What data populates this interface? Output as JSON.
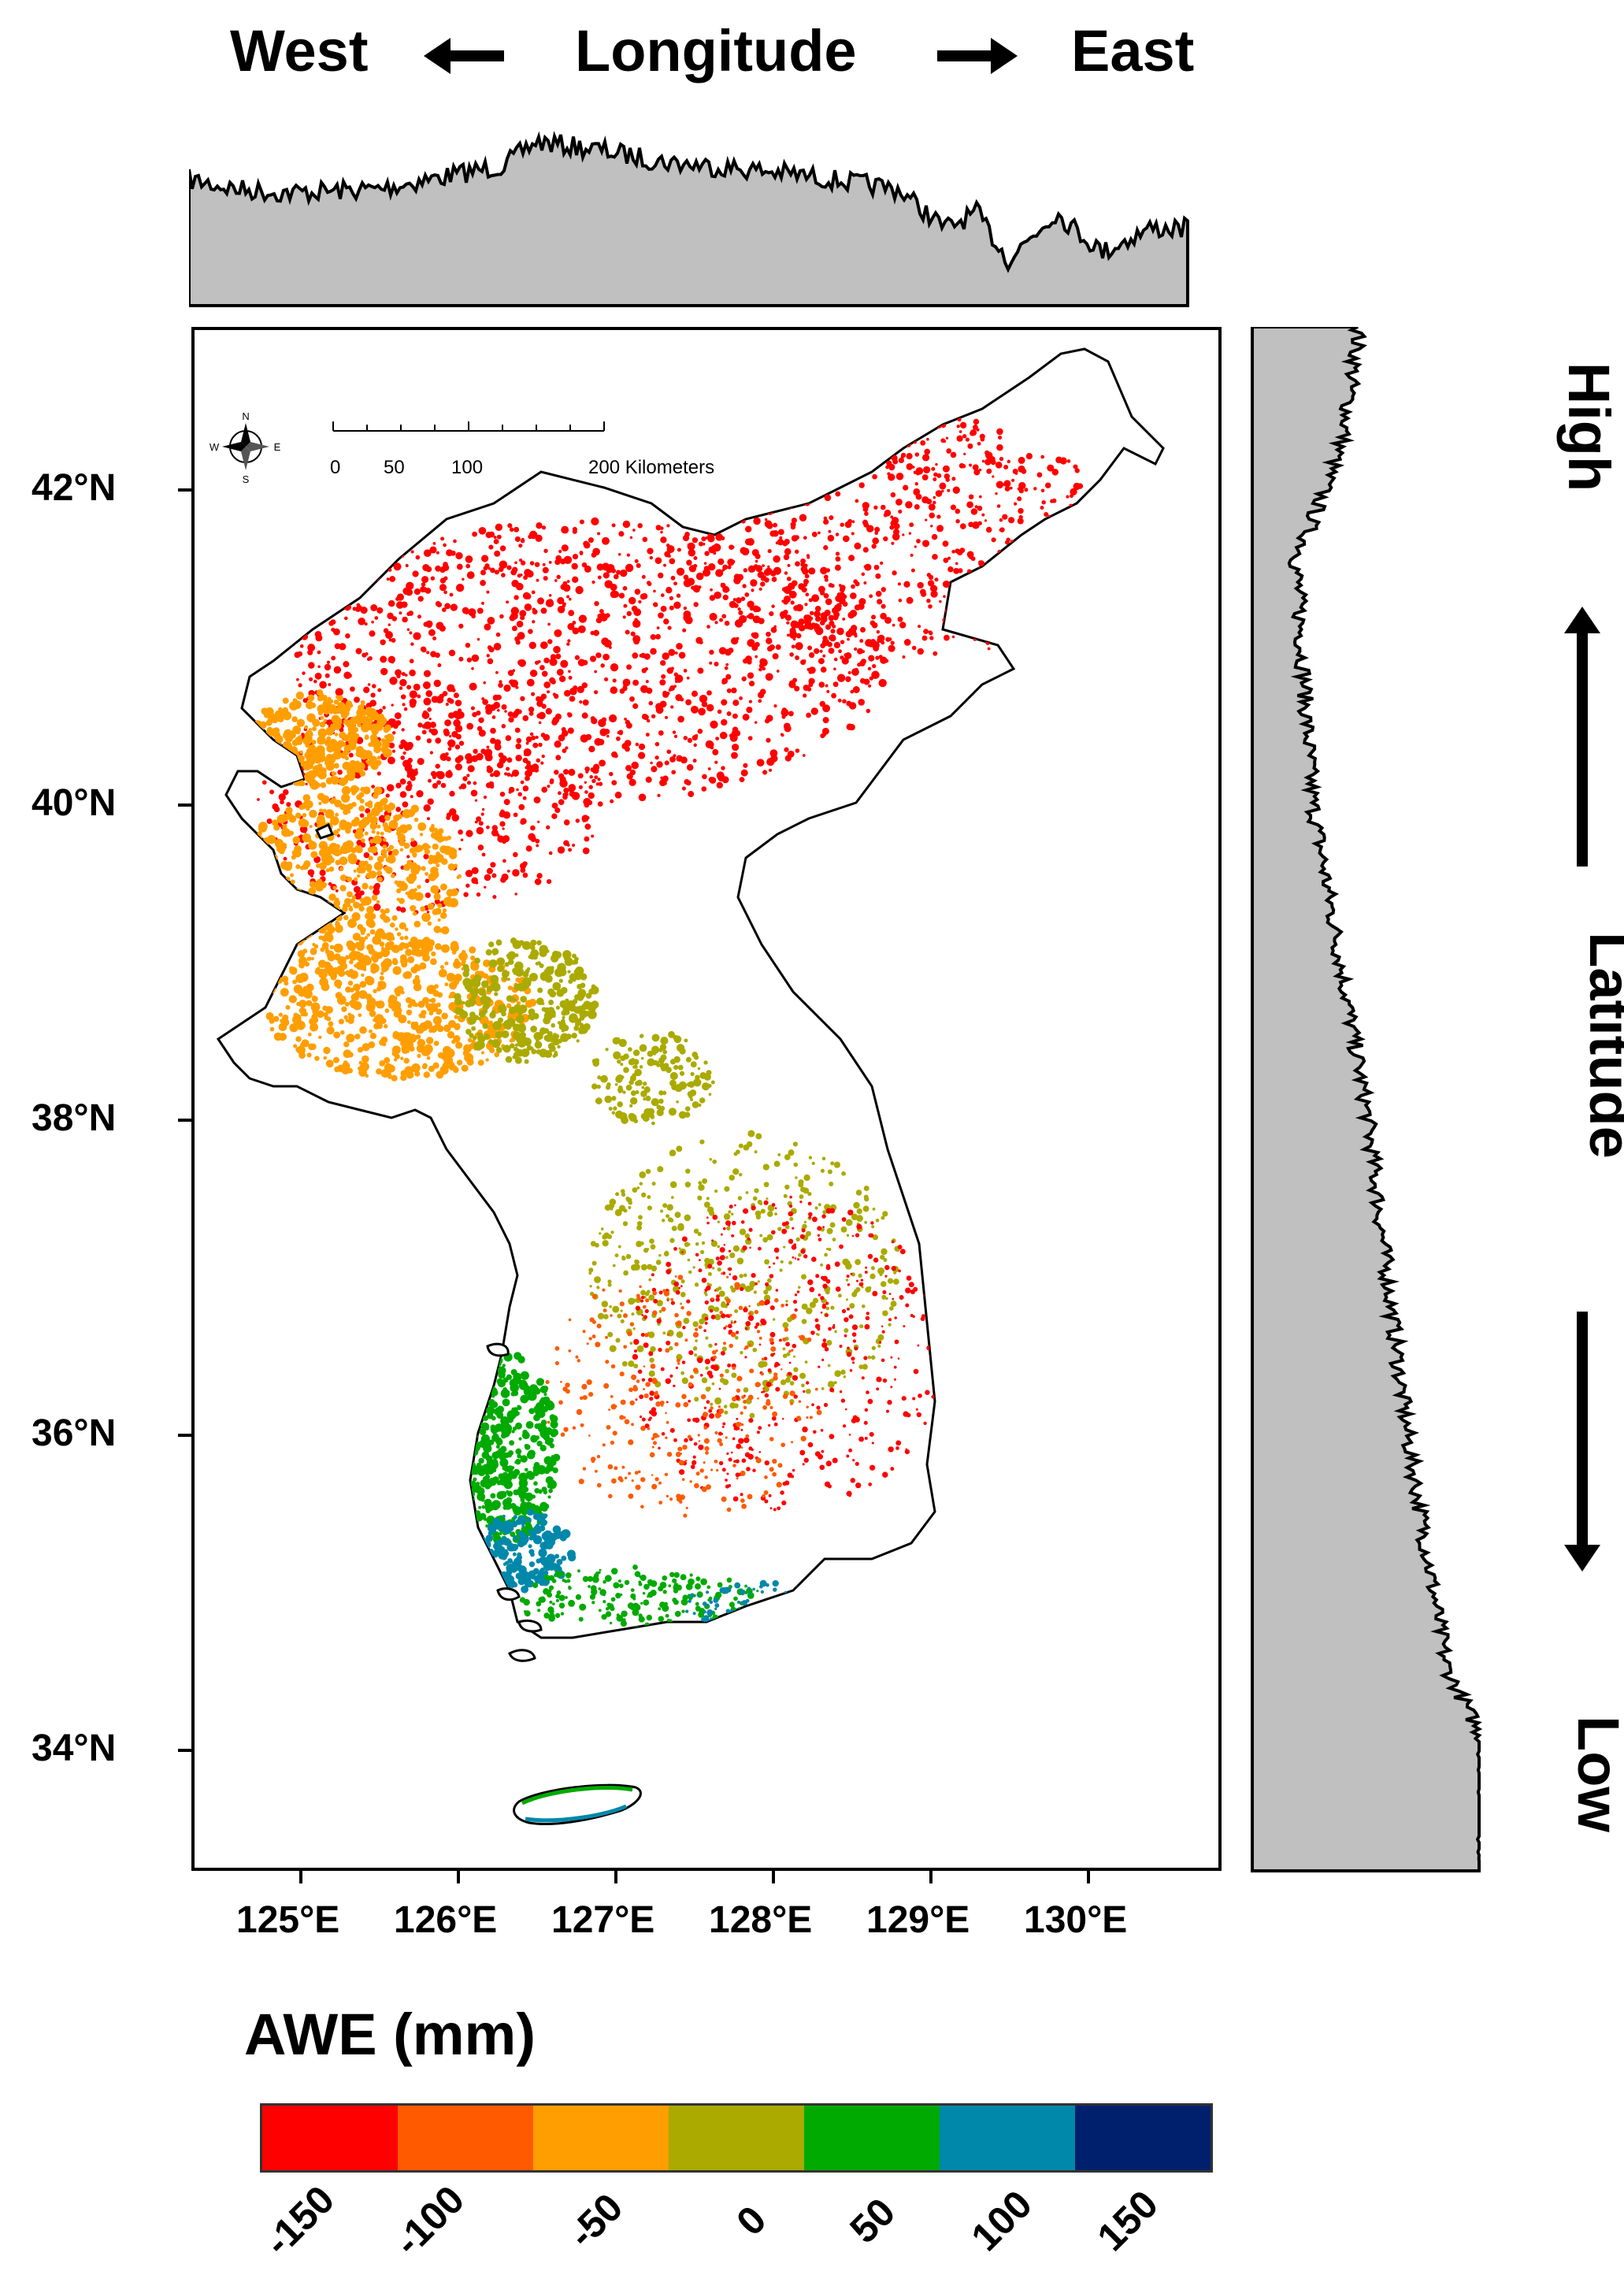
{
  "header": {
    "west": "West",
    "longitude": "Longitude",
    "east": "East"
  },
  "side": {
    "high": "High",
    "latitude": "Latitude",
    "low": "Low"
  },
  "map": {
    "lat_ticks": [
      "42°N",
      "40°N",
      "38°N",
      "36°N",
      "34°N"
    ],
    "lon_ticks": [
      "125°E",
      "126°E",
      "127°E",
      "128°E",
      "129°E",
      "130°E"
    ],
    "scale_bar": {
      "labels": [
        "0",
        "50",
        "100",
        "200 Kilometers"
      ]
    },
    "compass": {
      "n": "N",
      "e": "E",
      "s": "S",
      "w": "W"
    },
    "icons": [
      "compass-rose-icon"
    ],
    "outline_color": "#000000",
    "land_color": "#ffffff"
  },
  "legend": {
    "title": "AWE (mm)",
    "labels": [
      "-150",
      "-100",
      "-50",
      "0",
      "50",
      "100",
      "150"
    ],
    "colors": [
      "#ff0000",
      "#ff5a00",
      "#ff9e00",
      "#aaaa00",
      "#00aa00",
      "#0088aa",
      "#00206e"
    ]
  }
}
